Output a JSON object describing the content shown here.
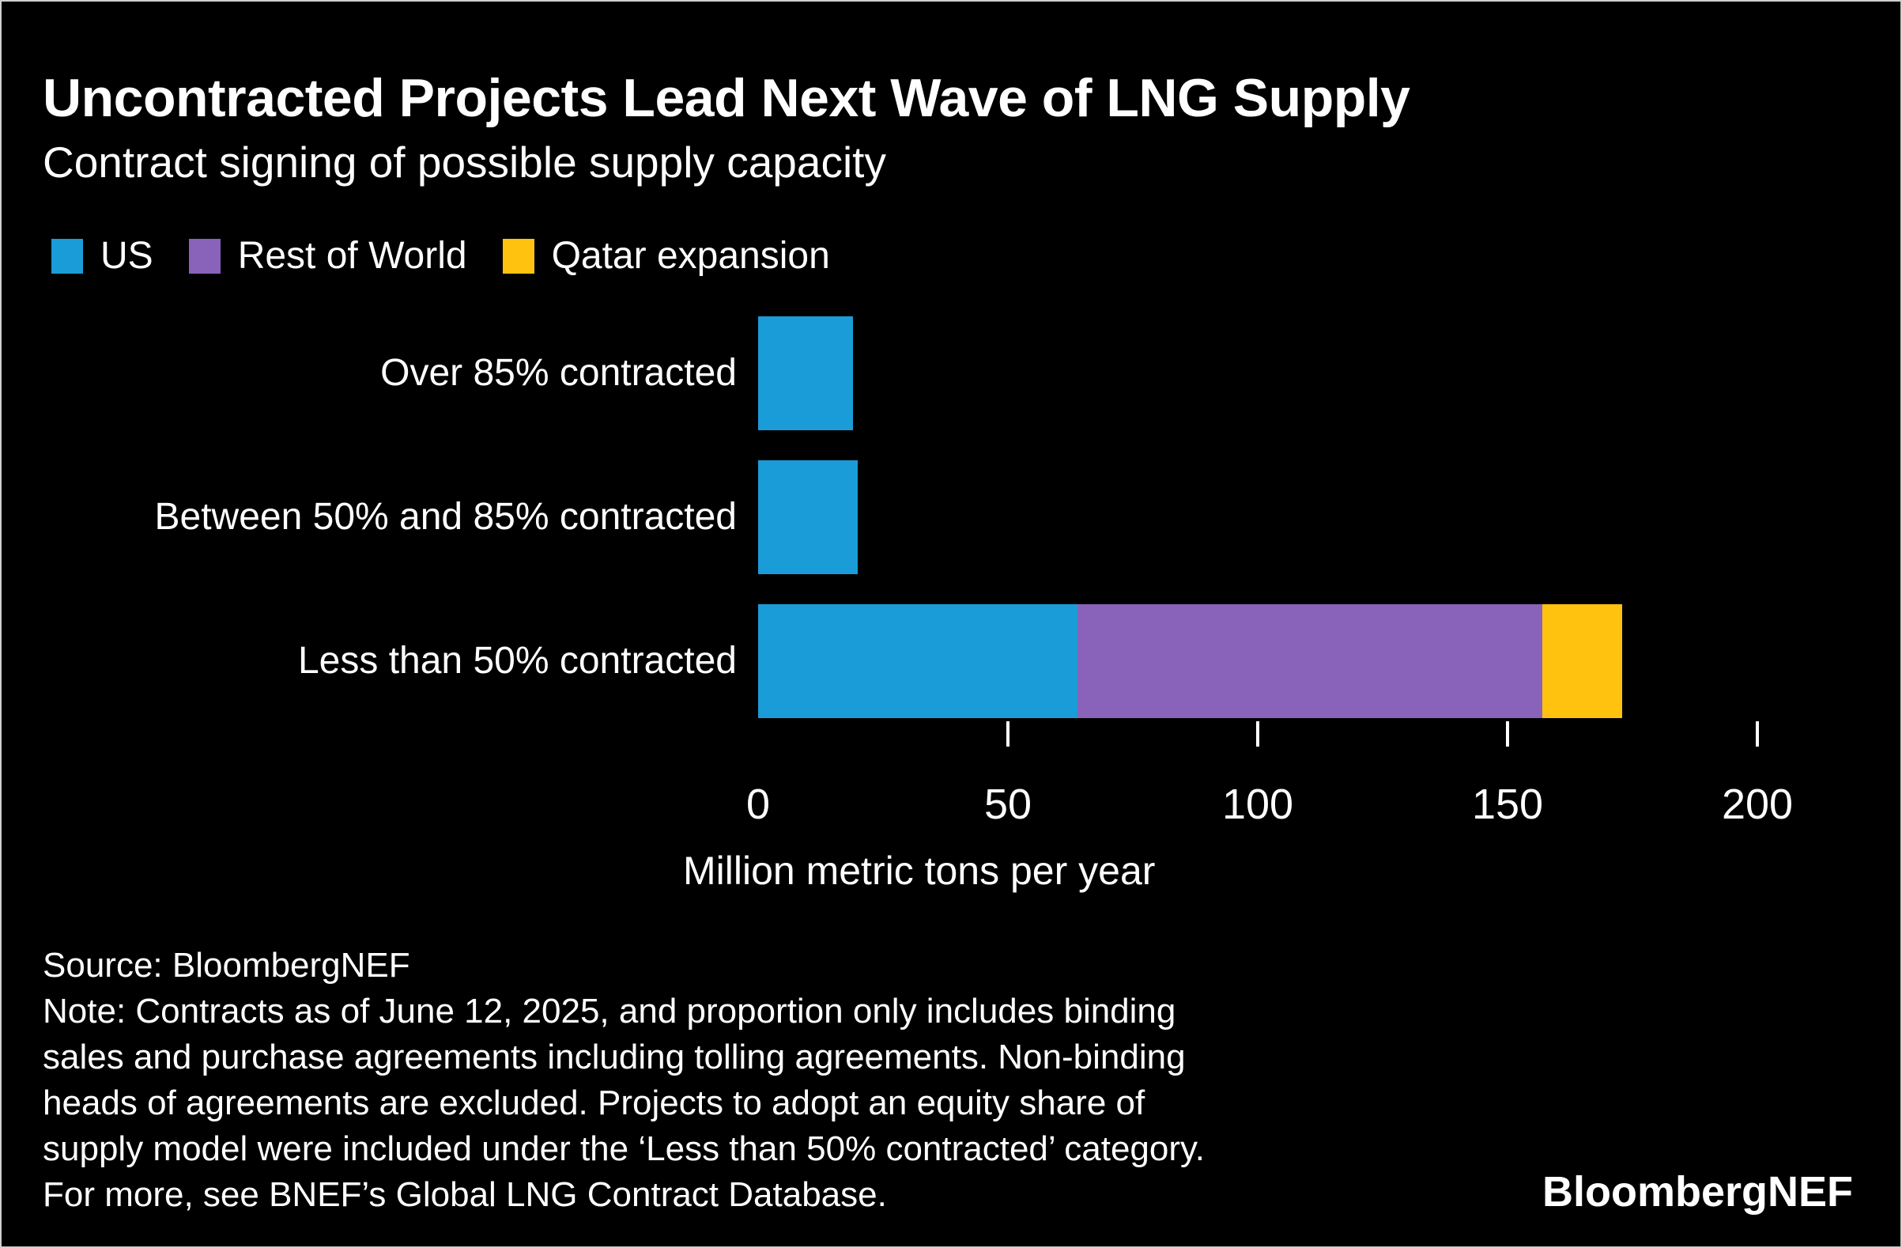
{
  "header": {
    "title": "Uncontracted Projects Lead Next Wave of LNG Supply",
    "subtitle": "Contract signing of possible supply capacity"
  },
  "legend": {
    "items": [
      {
        "label": "US",
        "color": "#1A9CD8"
      },
      {
        "label": "Rest of World",
        "color": "#8962BA"
      },
      {
        "label": "Qatar expansion",
        "color": "#FFC20E"
      }
    ]
  },
  "chart_data": {
    "type": "bar",
    "orientation": "horizontal",
    "stacked": true,
    "categories": [
      "Over 85% contracted",
      "Between 50% and 85% contracted",
      "Less than 50% contracted"
    ],
    "series": [
      {
        "name": "US",
        "color": "#1A9CD8",
        "values": [
          19,
          20,
          64
        ]
      },
      {
        "name": "Rest of World",
        "color": "#8962BA",
        "values": [
          0,
          0,
          93
        ]
      },
      {
        "name": "Qatar expansion",
        "color": "#FFC20E",
        "values": [
          0,
          0,
          16
        ]
      }
    ],
    "xlabel": "Million metric tons per year",
    "x_ticks": [
      0,
      50,
      100,
      150,
      200
    ],
    "tick_marks": [
      50,
      100,
      150,
      200
    ],
    "xlim": [
      0,
      200
    ],
    "grid": false,
    "legend_position": "top",
    "background": "#000000",
    "text_color": "#FFFFFF"
  },
  "footer": {
    "source": "Source: BloombergNEF",
    "note_lines": [
      "Note: Contracts as of June 12, 2025, and proportion only includes binding",
      "sales and purchase agreements including tolling agreements. Non-binding",
      "heads of agreements are excluded. Projects to adopt an equity share of",
      "supply model were included under the ‘Less than 50% contracted’ category.",
      "For more, see BNEF’s Global LNG Contract Database."
    ],
    "logo": "BloombergNEF"
  }
}
